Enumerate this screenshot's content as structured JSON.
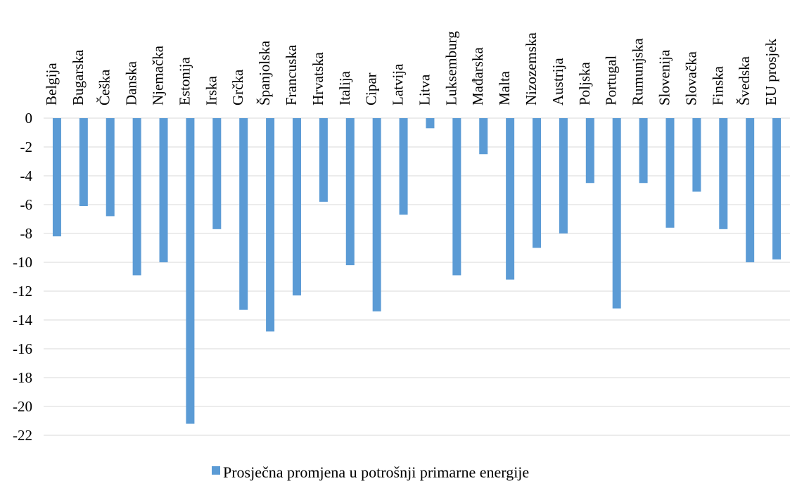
{
  "chart_data": {
    "type": "bar",
    "categories": [
      "Belgija",
      "Bugarska",
      "Češka",
      "Danska",
      "Njemačka",
      "Estonija",
      "Irska",
      "Grčka",
      "Španjolska",
      "Francuska",
      "Hrvatska",
      "Italija",
      "Cipar",
      "Latvija",
      "Litva",
      "Luksemburg",
      "Mađarska",
      "Malta",
      "Nizozemska",
      "Austrija",
      "Poljska",
      "Portugal",
      "Rumunjska",
      "Slovenija",
      "Slovačka",
      "Finska",
      "Švedska",
      "EU prosjek"
    ],
    "series": [
      {
        "name": "Prosječna promjena u potrošnji primarne energije",
        "values": [
          -8.2,
          -6.1,
          -6.8,
          -10.9,
          -10.0,
          -21.2,
          -7.7,
          -13.3,
          -14.8,
          -12.3,
          -5.8,
          -10.2,
          -13.4,
          -6.7,
          -0.7,
          -10.9,
          -2.5,
          -11.2,
          -9.0,
          -8.0,
          -4.5,
          -13.2,
          -4.5,
          -7.6,
          -5.1,
          -7.7,
          -10.0,
          -9.8
        ],
        "color": "#5b9bd5"
      }
    ],
    "yticks": [
      "0",
      "-2",
      "-4",
      "-6",
      "-8",
      "-10",
      "-12",
      "-14",
      "-16",
      "-18",
      "-20",
      "-22"
    ],
    "ylim": [
      -22,
      0
    ],
    "grid": true,
    "legend_position": "bottom",
    "xlabel": "",
    "ylabel": "",
    "title": ""
  }
}
